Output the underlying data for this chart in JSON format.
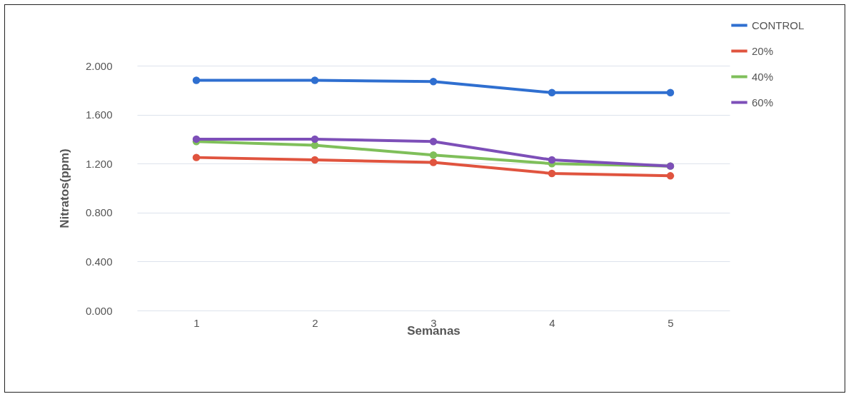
{
  "chart_data": {
    "type": "line",
    "xlabel": "Semanas",
    "ylabel": "Nitratos(ppm)",
    "categories": [
      "1",
      "2",
      "3",
      "4",
      "5"
    ],
    "series": [
      {
        "name": "CONTROL",
        "color": "#2f6fd0",
        "values": [
          1.88,
          1.88,
          1.87,
          1.78,
          1.78
        ]
      },
      {
        "name": "20%",
        "color": "#e0543f",
        "values": [
          1.25,
          1.23,
          1.21,
          1.12,
          1.1
        ]
      },
      {
        "name": "40%",
        "color": "#7fbf5a",
        "values": [
          1.38,
          1.35,
          1.27,
          1.2,
          1.18
        ]
      },
      {
        "name": "60%",
        "color": "#7d4fb8",
        "values": [
          1.4,
          1.4,
          1.38,
          1.23,
          1.18
        ]
      }
    ],
    "ylim": [
      0,
      2
    ],
    "yticks": [
      {
        "value": 0,
        "label": "0.000"
      },
      {
        "value": 0.4,
        "label": "0.400"
      },
      {
        "value": 0.8,
        "label": "0.800"
      },
      {
        "value": 1.2,
        "label": "1.200"
      },
      {
        "value": 1.6,
        "label": "1.600"
      },
      {
        "value": 2,
        "label": "2.000"
      }
    ],
    "grid": "y",
    "legend": "top right",
    "marker": "circle",
    "line_style": "solid"
  }
}
